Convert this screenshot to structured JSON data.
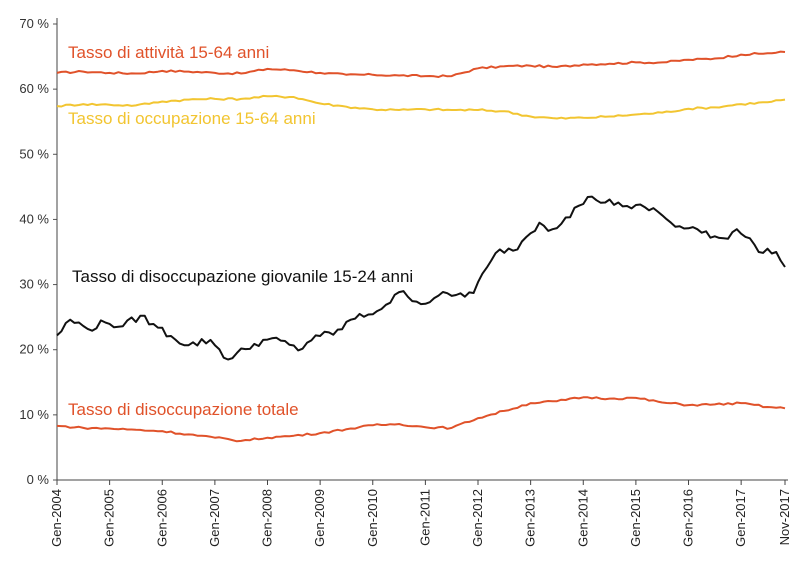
{
  "chart_data": {
    "type": "line",
    "title": "",
    "xlabel": "",
    "ylabel": "",
    "ylim": [
      0,
      70
    ],
    "y_ticks": [
      0,
      10,
      20,
      30,
      40,
      50,
      60,
      70
    ],
    "y_tick_labels": [
      "0 %",
      "10 %",
      "20 %",
      "30 %",
      "40 %",
      "50 %",
      "60 %",
      "70 %"
    ],
    "x_range": [
      "2004-01",
      "2017-11"
    ],
    "x_ticks": [
      "2004-01",
      "2005-01",
      "2006-01",
      "2007-01",
      "2008-01",
      "2009-01",
      "2010-01",
      "2011-01",
      "2012-01",
      "2013-01",
      "2014-01",
      "2015-01",
      "2016-01",
      "2017-01",
      "2017-11"
    ],
    "x_tick_labels": [
      "Gen-2004",
      "Gen-2005",
      "Gen-2006",
      "Gen-2007",
      "Gen-2008",
      "Gen-2009",
      "Gen-2010",
      "Gen-2011",
      "Gen-2012",
      "Gen-2013",
      "Gen-2014",
      "Gen-2015",
      "Gen-2016",
      "Gen-2017",
      "Nov-2017"
    ],
    "grid": false,
    "series": [
      {
        "name": "Tasso di attività 15-64 anni",
        "color": "#e0522a",
        "points": [
          [
            "2004-01",
            62.5
          ],
          [
            "2004-07",
            62.7
          ],
          [
            "2005-01",
            62.5
          ],
          [
            "2005-07",
            62.4
          ],
          [
            "2006-01",
            62.8
          ],
          [
            "2006-07",
            62.7
          ],
          [
            "2007-01",
            62.5
          ],
          [
            "2007-07",
            62.4
          ],
          [
            "2008-01",
            63.1
          ],
          [
            "2008-07",
            62.9
          ],
          [
            "2009-01",
            62.5
          ],
          [
            "2009-07",
            62.2
          ],
          [
            "2010-01",
            62.2
          ],
          [
            "2010-07",
            62.1
          ],
          [
            "2011-01",
            62.0
          ],
          [
            "2011-07",
            62.0
          ],
          [
            "2012-01",
            63.2
          ],
          [
            "2012-07",
            63.5
          ],
          [
            "2013-01",
            63.6
          ],
          [
            "2013-07",
            63.4
          ],
          [
            "2014-01",
            63.8
          ],
          [
            "2014-07",
            63.9
          ],
          [
            "2015-01",
            64.1
          ],
          [
            "2015-07",
            64.1
          ],
          [
            "2016-01",
            64.5
          ],
          [
            "2016-07",
            64.7
          ],
          [
            "2017-01",
            65.3
          ],
          [
            "2017-07",
            65.5
          ],
          [
            "2017-11",
            65.7
          ]
        ]
      },
      {
        "name": "Tasso di occupazione 15-64 anni",
        "color": "#f2c531",
        "points": [
          [
            "2004-01",
            57.4
          ],
          [
            "2004-07",
            57.7
          ],
          [
            "2005-01",
            57.6
          ],
          [
            "2005-07",
            57.5
          ],
          [
            "2006-01",
            58.1
          ],
          [
            "2006-07",
            58.4
          ],
          [
            "2007-01",
            58.5
          ],
          [
            "2007-07",
            58.5
          ],
          [
            "2008-01",
            58.9
          ],
          [
            "2008-07",
            58.8
          ],
          [
            "2009-01",
            57.8
          ],
          [
            "2009-07",
            57.3
          ],
          [
            "2010-01",
            56.9
          ],
          [
            "2010-07",
            56.8
          ],
          [
            "2011-01",
            56.9
          ],
          [
            "2011-07",
            56.8
          ],
          [
            "2012-01",
            56.8
          ],
          [
            "2012-07",
            56.6
          ],
          [
            "2013-01",
            55.8
          ],
          [
            "2013-07",
            55.5
          ],
          [
            "2014-01",
            55.6
          ],
          [
            "2014-07",
            55.8
          ],
          [
            "2015-01",
            56.1
          ],
          [
            "2015-07",
            56.4
          ],
          [
            "2016-01",
            57.0
          ],
          [
            "2016-07",
            57.2
          ],
          [
            "2017-01",
            57.7
          ],
          [
            "2017-07",
            58.0
          ],
          [
            "2017-11",
            58.4
          ]
        ]
      },
      {
        "name": "Tasso di disoccupazione giovanile 15-24 anni",
        "color": "#111111",
        "points": [
          [
            "2004-01",
            22.2
          ],
          [
            "2004-04",
            24.6
          ],
          [
            "2004-08",
            23.2
          ],
          [
            "2004-12",
            24.2
          ],
          [
            "2005-04",
            23.6
          ],
          [
            "2005-08",
            25.2
          ],
          [
            "2005-12",
            23.4
          ],
          [
            "2006-03",
            22.1
          ],
          [
            "2006-07",
            20.7
          ],
          [
            "2006-12",
            21.5
          ],
          [
            "2007-04",
            18.5
          ],
          [
            "2007-08",
            20.1
          ],
          [
            "2007-12",
            21.5
          ],
          [
            "2008-04",
            21.4
          ],
          [
            "2008-08",
            19.9
          ],
          [
            "2008-12",
            22.2
          ],
          [
            "2009-04",
            22.3
          ],
          [
            "2009-08",
            24.6
          ],
          [
            "2009-12",
            25.4
          ],
          [
            "2010-04",
            26.9
          ],
          [
            "2010-08",
            29.0
          ],
          [
            "2010-12",
            27.0
          ],
          [
            "2011-04",
            28.3
          ],
          [
            "2011-08",
            28.4
          ],
          [
            "2011-12",
            28.7
          ],
          [
            "2012-03",
            32.6
          ],
          [
            "2012-06",
            35.4
          ],
          [
            "2012-09",
            35.2
          ],
          [
            "2012-12",
            37.3
          ],
          [
            "2013-03",
            39.5
          ],
          [
            "2013-06",
            38.5
          ],
          [
            "2013-09",
            40.3
          ],
          [
            "2013-12",
            42.1
          ],
          [
            "2014-03",
            43.5
          ],
          [
            "2014-06",
            42.6
          ],
          [
            "2014-09",
            42.6
          ],
          [
            "2014-12",
            41.7
          ],
          [
            "2015-03",
            41.9
          ],
          [
            "2015-06",
            41.2
          ],
          [
            "2015-09",
            39.5
          ],
          [
            "2015-12",
            38.6
          ],
          [
            "2016-03",
            38.5
          ],
          [
            "2016-06",
            37.2
          ],
          [
            "2016-09",
            37.1
          ],
          [
            "2016-12",
            38.5
          ],
          [
            "2017-03",
            37.1
          ],
          [
            "2017-05",
            35.0
          ],
          [
            "2017-07",
            35.5
          ],
          [
            "2017-09",
            35.0
          ],
          [
            "2017-11",
            32.7
          ]
        ]
      },
      {
        "name": "Tasso di disoccupazione totale",
        "color": "#e0522a",
        "points": [
          [
            "2004-01",
            8.3
          ],
          [
            "2004-07",
            8.0
          ],
          [
            "2005-01",
            7.9
          ],
          [
            "2005-07",
            7.7
          ],
          [
            "2006-01",
            7.5
          ],
          [
            "2006-07",
            7.0
          ],
          [
            "2007-01",
            6.5
          ],
          [
            "2007-07",
            6.0
          ],
          [
            "2008-01",
            6.5
          ],
          [
            "2008-07",
            6.8
          ],
          [
            "2009-01",
            7.2
          ],
          [
            "2009-07",
            7.8
          ],
          [
            "2010-01",
            8.4
          ],
          [
            "2010-07",
            8.6
          ],
          [
            "2011-01",
            8.1
          ],
          [
            "2011-07",
            8.0
          ],
          [
            "2012-01",
            9.5
          ],
          [
            "2012-07",
            10.6
          ],
          [
            "2013-01",
            11.8
          ],
          [
            "2013-07",
            12.1
          ],
          [
            "2014-01",
            12.7
          ],
          [
            "2014-07",
            12.5
          ],
          [
            "2015-01",
            12.6
          ],
          [
            "2015-07",
            11.9
          ],
          [
            "2016-01",
            11.5
          ],
          [
            "2016-07",
            11.6
          ],
          [
            "2017-01",
            11.8
          ],
          [
            "2017-07",
            11.2
          ],
          [
            "2017-11",
            11.0
          ]
        ]
      }
    ]
  }
}
